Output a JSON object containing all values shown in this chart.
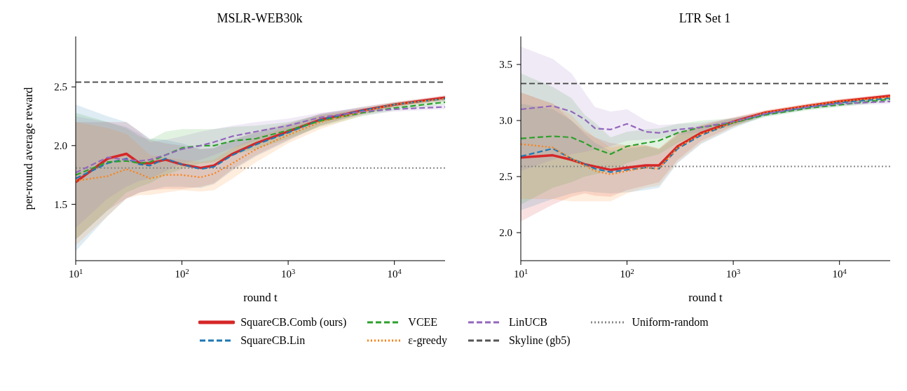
{
  "chart_data": [
    {
      "type": "line",
      "title": "MSLR-WEB30k",
      "xlabel": "round t",
      "ylabel": "per-round average reward",
      "log": "x",
      "xlim": [
        10,
        30000
      ],
      "xticks": [
        {
          "value": 10,
          "label": "10$^{1}$"
        },
        {
          "value": 100,
          "label": "10$^{2}$"
        },
        {
          "value": 1000,
          "label": "10$^{3}$"
        },
        {
          "value": 10000,
          "label": "10$^{4}$"
        }
      ],
      "ylim": [
        1.02,
        2.93
      ],
      "yticks": [
        {
          "value": 1.5,
          "label": "1.5"
        },
        {
          "value": 2,
          "label": "2.0"
        },
        {
          "value": 2.5,
          "label": "2.5"
        }
      ],
      "legend": "bottom",
      "x": [
        10,
        20,
        30,
        40,
        50,
        70,
        100,
        150,
        200,
        300,
        500,
        1000,
        2000,
        5000,
        10000,
        30000
      ],
      "series": [
        {
          "name": "SquareCB.Comb (ours)",
          "color": "#d62728",
          "line_style": "solid",
          "values": [
            1.69,
            1.89,
            1.93,
            1.85,
            1.85,
            1.88,
            1.84,
            1.81,
            1.83,
            1.93,
            2.02,
            2.12,
            2.22,
            2.3,
            2.35,
            2.41
          ],
          "lower": [
            1.2,
            1.45,
            1.55,
            1.6,
            1.62,
            1.63,
            1.63,
            1.65,
            1.68,
            1.8,
            1.92,
            2.05,
            2.17,
            2.27,
            2.33,
            2.39
          ],
          "upper": [
            2.2,
            2.2,
            2.2,
            2.12,
            2.05,
            2.02,
            2,
            1.97,
            1.98,
            2.05,
            2.12,
            2.19,
            2.27,
            2.33,
            2.37,
            2.43
          ]
        },
        {
          "name": "SquareCB.Lin",
          "color": "#1f77b4",
          "line_style": "dashed",
          "values": [
            1.72,
            1.85,
            1.89,
            1.84,
            1.83,
            1.89,
            1.84,
            1.8,
            1.82,
            1.92,
            2.01,
            2.11,
            2.22,
            2.3,
            2.35,
            2.4
          ],
          "lower": [
            1.1,
            1.4,
            1.55,
            1.6,
            1.62,
            1.65,
            1.65,
            1.64,
            1.67,
            1.79,
            1.91,
            2.04,
            2.17,
            2.27,
            2.33,
            2.38
          ],
          "upper": [
            2.35,
            2.25,
            2.2,
            2.12,
            2.06,
            2.05,
            2.02,
            1.97,
            1.98,
            2.05,
            2.11,
            2.18,
            2.27,
            2.33,
            2.37,
            2.42
          ]
        },
        {
          "name": "VCEE",
          "color": "#2ca02c",
          "line_style": "dashed",
          "values": [
            1.75,
            1.86,
            1.87,
            1.85,
            1.86,
            1.92,
            1.98,
            2,
            2,
            2.04,
            2.06,
            2.13,
            2.21,
            2.28,
            2.32,
            2.37
          ],
          "lower": [
            1.2,
            1.45,
            1.6,
            1.65,
            1.68,
            1.75,
            1.8,
            1.85,
            1.86,
            1.92,
            1.97,
            2.06,
            2.16,
            2.25,
            2.3,
            2.35
          ],
          "upper": [
            2.28,
            2.2,
            2.15,
            2.08,
            2.05,
            2.12,
            2.14,
            2.14,
            2.14,
            2.16,
            2.17,
            2.2,
            2.26,
            2.31,
            2.34,
            2.39
          ]
        },
        {
          "name": "ε-greedy",
          "color": "#ff7f0e",
          "line_style": "dotted",
          "values": [
            1.7,
            1.74,
            1.8,
            1.76,
            1.72,
            1.75,
            1.75,
            1.73,
            1.76,
            1.85,
            1.97,
            2.09,
            2.2,
            2.29,
            2.35,
            2.4
          ],
          "lower": [
            1.15,
            1.4,
            1.55,
            1.58,
            1.58,
            1.6,
            1.62,
            1.61,
            1.62,
            1.72,
            1.86,
            2.02,
            2.14,
            2.26,
            2.33,
            2.38
          ],
          "upper": [
            2.2,
            2.15,
            2.1,
            2,
            1.92,
            1.9,
            1.88,
            1.86,
            1.88,
            1.98,
            2.07,
            2.16,
            2.26,
            2.32,
            2.37,
            2.42
          ]
        },
        {
          "name": "LinUCB",
          "color": "#9467bd",
          "line_style": "dashed",
          "values": [
            1.77,
            1.9,
            1.88,
            1.87,
            1.88,
            1.92,
            1.97,
            2,
            2.03,
            2.08,
            2.12,
            2.17,
            2.24,
            2.29,
            2.31,
            2.33
          ],
          "lower": [
            1.3,
            1.55,
            1.65,
            1.7,
            1.72,
            1.78,
            1.85,
            1.88,
            1.92,
            1.98,
            2.04,
            2.11,
            2.2,
            2.26,
            2.29,
            2.31
          ],
          "upper": [
            2.25,
            2.2,
            2.16,
            2.1,
            2.03,
            2.05,
            2.08,
            2.12,
            2.14,
            2.17,
            2.2,
            2.23,
            2.28,
            2.32,
            2.33,
            2.35
          ]
        }
      ],
      "ref_lines": [
        {
          "axis": "y",
          "value": 2.54,
          "label": "Skyline (gb5)",
          "color": "#555555",
          "line_style": "dashed"
        },
        {
          "axis": "y",
          "value": 1.81,
          "label": "Uniform-random",
          "color": "#888888",
          "line_style": "dotted"
        }
      ]
    },
    {
      "type": "line",
      "title": "LTR Set 1",
      "xlabel": "round t",
      "log": "x",
      "xlim": [
        10,
        30000
      ],
      "xticks": [
        {
          "value": 10,
          "label": "10$^{1}$"
        },
        {
          "value": 100,
          "label": "10$^{2}$"
        },
        {
          "value": 1000,
          "label": "10$^{3}$"
        },
        {
          "value": 10000,
          "label": "10$^{4}$"
        }
      ],
      "ylim": [
        1.75,
        3.75
      ],
      "yticks": [
        {
          "value": 2,
          "label": "2.0"
        },
        {
          "value": 2.5,
          "label": "2.5"
        },
        {
          "value": 3,
          "label": "3.0"
        },
        {
          "value": 3.5,
          "label": "3.5"
        }
      ],
      "x": [
        10,
        20,
        30,
        40,
        50,
        70,
        100,
        150,
        200,
        300,
        500,
        1000,
        2000,
        5000,
        10000,
        30000
      ],
      "series": [
        {
          "color": "#d62728",
          "line_style": "solid",
          "values": [
            2.67,
            2.69,
            2.65,
            2.61,
            2.59,
            2.56,
            2.58,
            2.6,
            2.6,
            2.77,
            2.89,
            2.99,
            3.07,
            3.13,
            3.17,
            3.22
          ],
          "lower": [
            2.1,
            2.25,
            2.32,
            2.35,
            2.33,
            2.32,
            2.38,
            2.42,
            2.45,
            2.65,
            2.82,
            2.95,
            3.05,
            3.11,
            3.15,
            3.21
          ],
          "upper": [
            3.25,
            3.15,
            3,
            2.9,
            2.85,
            2.8,
            2.78,
            2.78,
            2.75,
            2.89,
            2.96,
            3.03,
            3.09,
            3.15,
            3.19,
            3.24
          ]
        },
        {
          "color": "#1f77b4",
          "line_style": "dashed",
          "values": [
            2.68,
            2.75,
            2.66,
            2.61,
            2.57,
            2.54,
            2.56,
            2.58,
            2.57,
            2.75,
            2.87,
            2.98,
            3.06,
            3.12,
            3.16,
            3.2
          ],
          "lower": [
            2.2,
            2.3,
            2.35,
            2.37,
            2.36,
            2.35,
            2.36,
            2.38,
            2.4,
            2.62,
            2.79,
            2.93,
            3.04,
            3.1,
            3.14,
            3.19
          ],
          "upper": [
            3.15,
            3.1,
            3,
            2.88,
            2.8,
            2.73,
            2.75,
            2.77,
            2.74,
            2.87,
            2.95,
            3.02,
            3.08,
            3.14,
            3.18,
            3.22
          ]
        },
        {
          "color": "#2ca02c",
          "line_style": "dashed",
          "values": [
            2.84,
            2.86,
            2.85,
            2.8,
            2.75,
            2.7,
            2.77,
            2.8,
            2.82,
            2.89,
            2.94,
            2.98,
            3.05,
            3.11,
            3.14,
            3.19
          ],
          "lower": [
            2.25,
            2.4,
            2.45,
            2.5,
            2.52,
            2.55,
            2.62,
            2.67,
            2.7,
            2.8,
            2.89,
            2.95,
            3.03,
            3.09,
            3.12,
            3.17
          ],
          "upper": [
            3.42,
            3.3,
            3.2,
            3.05,
            2.98,
            2.85,
            2.9,
            2.92,
            2.93,
            2.97,
            3,
            3.02,
            3.07,
            3.13,
            3.16,
            3.21
          ]
        },
        {
          "color": "#ff7f0e",
          "line_style": "dotted",
          "values": [
            2.79,
            2.76,
            2.66,
            2.6,
            2.55,
            2.52,
            2.55,
            2.58,
            2.57,
            2.76,
            2.88,
            2.98,
            3.07,
            3.13,
            3.17,
            3.21
          ],
          "lower": [
            2.3,
            2.3,
            2.28,
            2.28,
            2.28,
            2.28,
            2.35,
            2.4,
            2.42,
            2.63,
            2.8,
            2.94,
            3.05,
            3.11,
            3.15,
            3.19
          ],
          "upper": [
            3.25,
            3.15,
            3.05,
            2.92,
            2.85,
            2.76,
            2.78,
            2.78,
            2.75,
            2.88,
            2.96,
            3.02,
            3.09,
            3.15,
            3.19,
            3.23
          ]
        },
        {
          "color": "#9467bd",
          "line_style": "dashed",
          "values": [
            3.1,
            3.13,
            3.08,
            3.01,
            2.93,
            2.92,
            2.97,
            2.9,
            2.89,
            2.92,
            2.94,
            2.99,
            3.06,
            3.12,
            3.15,
            3.17
          ],
          "lower": [
            2.55,
            2.65,
            2.7,
            2.72,
            2.74,
            2.77,
            2.82,
            2.83,
            2.84,
            2.87,
            2.9,
            2.96,
            3.04,
            3.1,
            3.13,
            3.15
          ],
          "upper": [
            3.66,
            3.55,
            3.42,
            3.25,
            3.12,
            3.08,
            3.1,
            3,
            2.96,
            2.97,
            2.98,
            3.02,
            3.08,
            3.14,
            3.17,
            3.19
          ]
        }
      ],
      "ref_lines": [
        {
          "axis": "y",
          "value": 3.33,
          "color": "#555555",
          "line_style": "dashed"
        },
        {
          "axis": "y",
          "value": 2.59,
          "color": "#888888",
          "line_style": "dotted"
        }
      ]
    }
  ]
}
